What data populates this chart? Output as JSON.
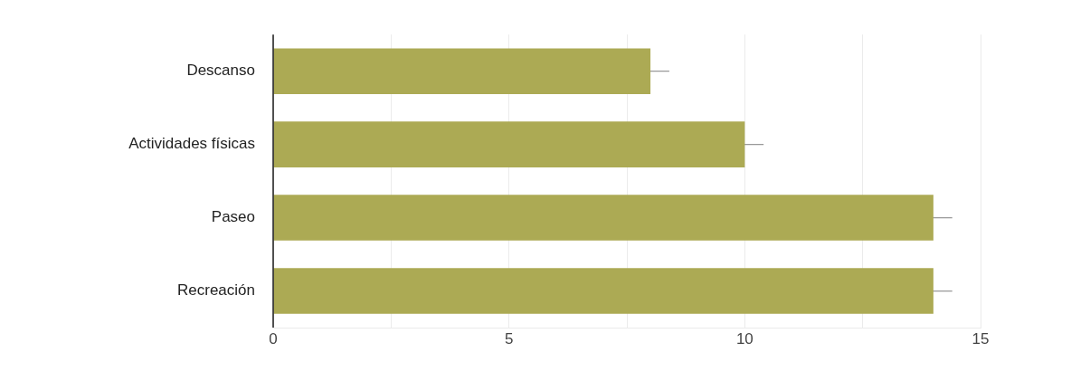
{
  "chart_data": {
    "type": "bar",
    "orientation": "horizontal",
    "categories": [
      "Descanso",
      "Actividades físicas",
      "Paseo",
      "Recreación"
    ],
    "values": [
      8,
      10,
      14,
      14
    ],
    "errors": [
      0.4,
      0.4,
      0.4,
      0.4
    ],
    "color": "#acaa54",
    "xlim": [
      0,
      15
    ],
    "xticks": [
      0,
      {
        "value": 2.5,
        "label": null
      },
      5,
      {
        "value": 7.5,
        "label": null
      },
      10,
      {
        "value": 12.5,
        "label": null
      },
      15
    ],
    "grid": "x"
  }
}
